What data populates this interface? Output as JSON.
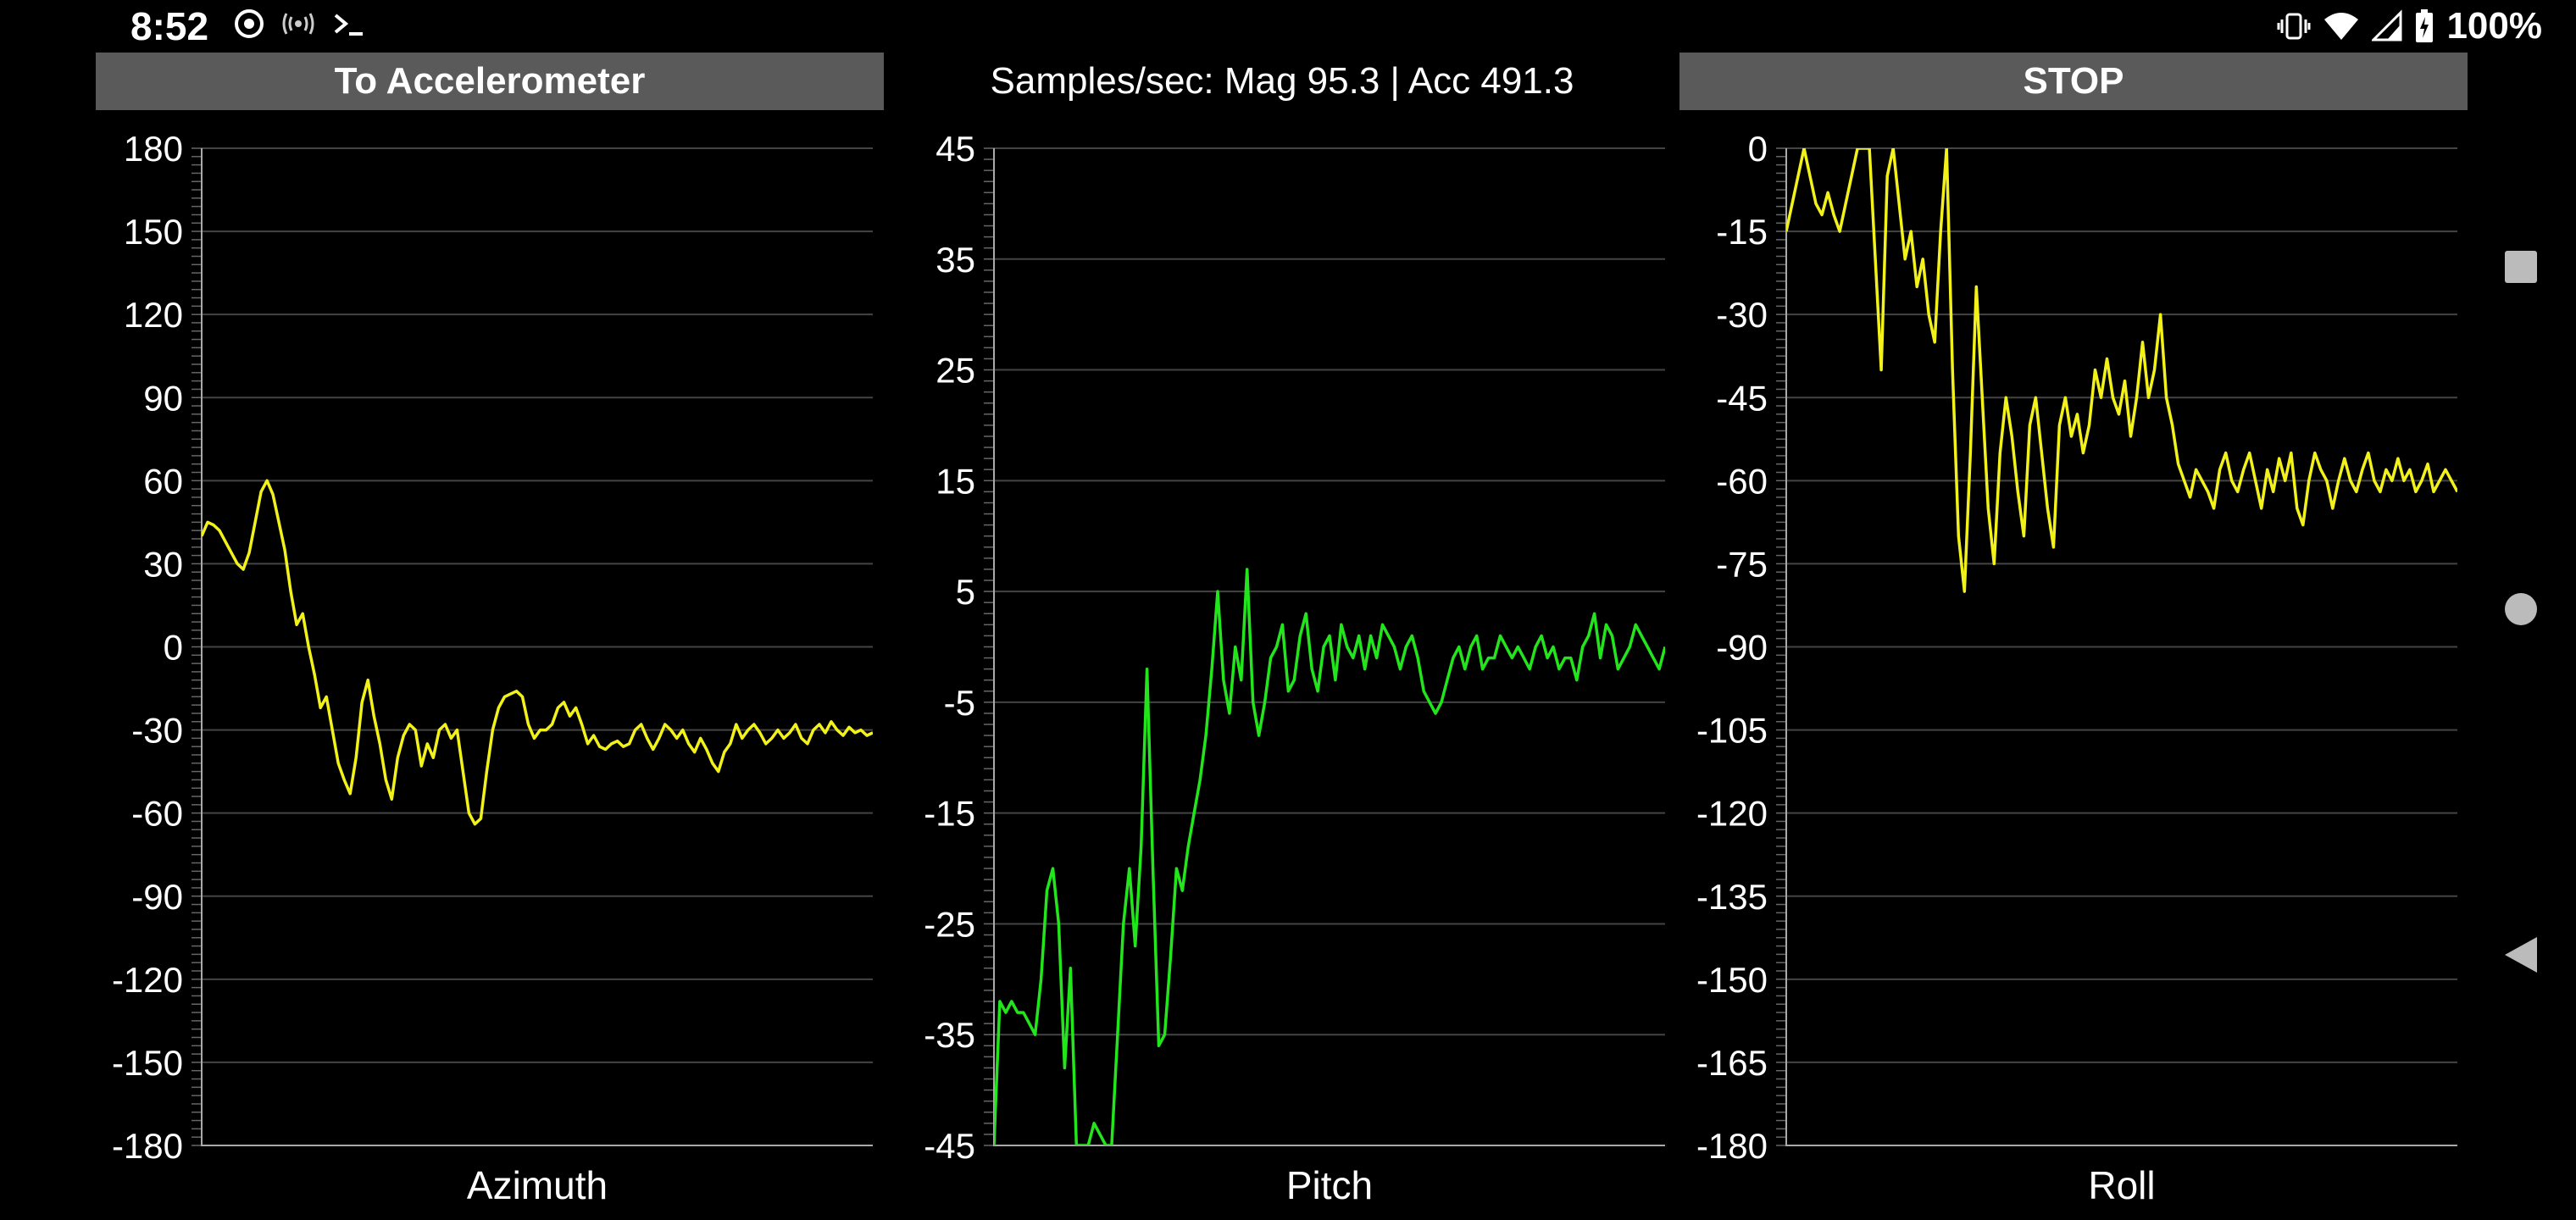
{
  "status": {
    "time": "8:52",
    "left_icons": [
      "media-play-icon",
      "antenna-icon",
      "terminal-icon"
    ],
    "right_icons": [
      "vibrate-icon",
      "wifi-icon",
      "signal-icon",
      "battery-charging-icon"
    ],
    "battery": "100%"
  },
  "toolbar": {
    "to_accelerometer_label": "To Accelerometer",
    "samples_label": "Samples/sec: Mag 95.3 | Acc 491.3",
    "stop_label": "STOP"
  },
  "nav": {
    "icons": [
      "recents-square-icon",
      "home-circle-icon",
      "back-triangle-icon"
    ]
  },
  "colors": {
    "azimuth_line": "#f2f21a",
    "pitch_line": "#22e51c",
    "roll_line": "#f2f21a",
    "button_bg": "#5a5a5a",
    "grid": "#444444",
    "axis": "#aaaaaa"
  },
  "chart_data": [
    {
      "type": "line",
      "xlabel": "Azimuth",
      "ylim": [
        -180,
        180
      ],
      "yticks": [
        "180",
        "150",
        "120",
        "90",
        "60",
        "30",
        "0",
        "-30",
        "-60",
        "-90",
        "-120",
        "-150",
        "-180"
      ],
      "series": [
        {
          "values": [
            40,
            45,
            44,
            42,
            38,
            34,
            30,
            28,
            34,
            45,
            56,
            60,
            55,
            45,
            35,
            20,
            8,
            12,
            0,
            -10,
            -22,
            -18,
            -30,
            -42,
            -48,
            -53,
            -40,
            -20,
            -12,
            -25,
            -35,
            -48,
            -55,
            -40,
            -32,
            -28,
            -30,
            -43,
            -35,
            -40,
            -30,
            -28,
            -33,
            -30,
            -45,
            -60,
            -64,
            -62,
            -45,
            -30,
            -22,
            -18,
            -17,
            -16,
            -18,
            -28,
            -33,
            -30,
            -30,
            -28,
            -22,
            -20,
            -25,
            -22,
            -28,
            -35,
            -32,
            -36,
            -37,
            -35,
            -34,
            -36,
            -35,
            -30,
            -28,
            -33,
            -37,
            -33,
            -28,
            -30,
            -33,
            -30,
            -35,
            -38,
            -33,
            -37,
            -42,
            -45,
            -38,
            -35,
            -28,
            -33,
            -30,
            -28,
            -31,
            -35,
            -33,
            -30,
            -33,
            -31,
            -28,
            -33,
            -35,
            -30,
            -28,
            -31,
            -27,
            -30,
            -32,
            -29,
            -31,
            -30,
            -32,
            -31
          ]
        }
      ]
    },
    {
      "type": "line",
      "xlabel": "Pitch",
      "ylim": [
        -45,
        45
      ],
      "yticks": [
        "45",
        "35",
        "25",
        "15",
        "5",
        "-5",
        "-15",
        "-25",
        "-35",
        "-45"
      ],
      "series": [
        {
          "values": [
            -45,
            -32,
            -33,
            -32,
            -33,
            -33,
            -34,
            -35,
            -30,
            -22,
            -20,
            -25,
            -38,
            -29,
            -45,
            -45,
            -45,
            -43,
            -44,
            -45,
            -45,
            -35,
            -25,
            -20,
            -27,
            -18,
            -2,
            -20,
            -36,
            -35,
            -28,
            -20,
            -22,
            -18,
            -15,
            -12,
            -8,
            -2,
            5,
            -3,
            -6,
            0,
            -3,
            7,
            -5,
            -8,
            -5,
            -1,
            0,
            2,
            -4,
            -3,
            1,
            3,
            -2,
            -4,
            0,
            1,
            -3,
            2,
            0,
            -1,
            1,
            -2,
            1,
            -1,
            2,
            1,
            0,
            -2,
            0,
            1,
            -1,
            -4,
            -5,
            -6,
            -5,
            -3,
            -1,
            0,
            -2,
            0,
            1,
            -2,
            -1,
            -1,
            1,
            0,
            -1,
            0,
            -1,
            -2,
            0,
            1,
            -1,
            0,
            -2,
            -1,
            -1,
            -3,
            0,
            1,
            3,
            -1,
            2,
            1,
            -2,
            -1,
            0,
            2,
            1,
            0,
            -1,
            -2,
            0
          ]
        }
      ]
    },
    {
      "type": "line",
      "xlabel": "Roll",
      "ylim": [
        -180,
        0
      ],
      "yticks": [
        "0",
        "-15",
        "-30",
        "-45",
        "-60",
        "-75",
        "-90",
        "-105",
        "-120",
        "-135",
        "-150",
        "-165",
        "-180"
      ],
      "series": [
        {
          "values": [
            -15,
            -10,
            -5,
            0,
            -5,
            -10,
            -12,
            -8,
            -12,
            -15,
            -10,
            -5,
            0,
            0,
            0,
            -20,
            -40,
            -5,
            0,
            -10,
            -20,
            -15,
            -25,
            -20,
            -30,
            -35,
            -15,
            0,
            -40,
            -70,
            -80,
            -55,
            -25,
            -45,
            -65,
            -75,
            -55,
            -45,
            -52,
            -62,
            -70,
            -50,
            -45,
            -55,
            -65,
            -72,
            -50,
            -45,
            -52,
            -48,
            -55,
            -50,
            -40,
            -45,
            -38,
            -45,
            -48,
            -42,
            -52,
            -45,
            -35,
            -45,
            -40,
            -30,
            -45,
            -50,
            -57,
            -60,
            -63,
            -58,
            -60,
            -62,
            -65,
            -58,
            -55,
            -60,
            -62,
            -58,
            -55,
            -60,
            -65,
            -58,
            -62,
            -56,
            -60,
            -55,
            -65,
            -68,
            -60,
            -55,
            -58,
            -60,
            -65,
            -60,
            -56,
            -60,
            -62,
            -58,
            -55,
            -60,
            -62,
            -58,
            -60,
            -56,
            -60,
            -58,
            -62,
            -60,
            -57,
            -62,
            -60,
            -58,
            -60,
            -62
          ]
        }
      ]
    }
  ]
}
